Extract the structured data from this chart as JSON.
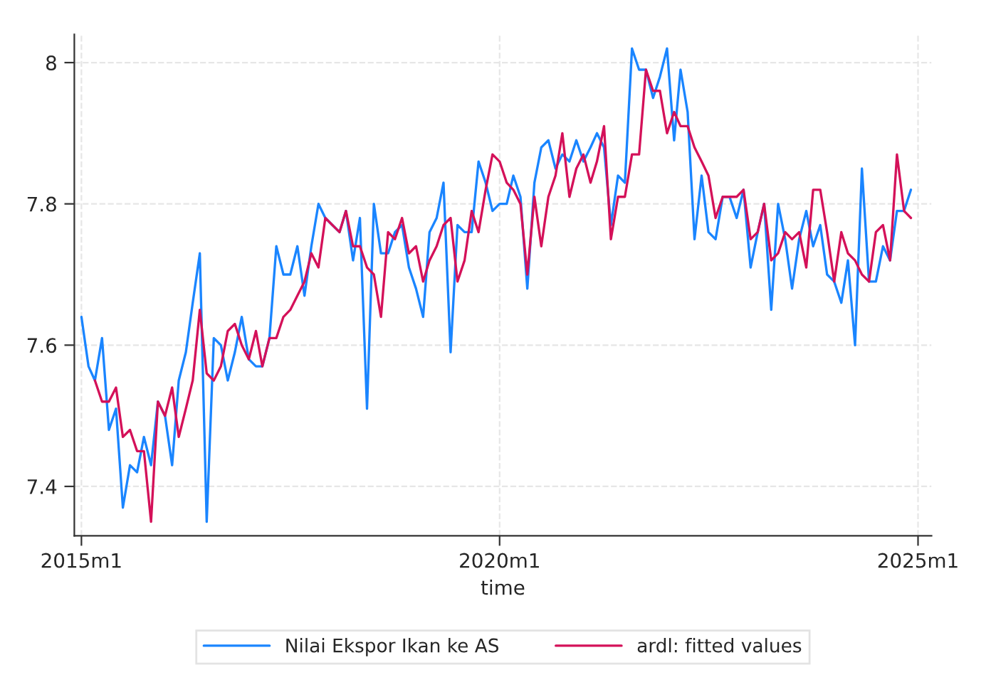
{
  "chart_data": {
    "type": "line",
    "xlabel": "time",
    "x": [
      "2015-01",
      "2015-02",
      "2015-03",
      "2015-04",
      "2015-05",
      "2015-06",
      "2015-07",
      "2015-08",
      "2015-09",
      "2015-10",
      "2015-11",
      "2015-12",
      "2016-01",
      "2016-02",
      "2016-03",
      "2016-04",
      "2016-05",
      "2016-06",
      "2016-07",
      "2016-08",
      "2016-09",
      "2016-10",
      "2016-11",
      "2016-12",
      "2017-01",
      "2017-02",
      "2017-03",
      "2017-04",
      "2017-05",
      "2017-06",
      "2017-07",
      "2017-08",
      "2017-09",
      "2017-10",
      "2017-11",
      "2017-12",
      "2018-01",
      "2018-02",
      "2018-03",
      "2018-04",
      "2018-05",
      "2018-06",
      "2018-07",
      "2018-08",
      "2018-09",
      "2018-10",
      "2018-11",
      "2018-12",
      "2019-01",
      "2019-02",
      "2019-03",
      "2019-04",
      "2019-05",
      "2019-06",
      "2019-07",
      "2019-08",
      "2019-09",
      "2019-10",
      "2019-11",
      "2019-12",
      "2020-01",
      "2020-02",
      "2020-03",
      "2020-04",
      "2020-05",
      "2020-06",
      "2020-07",
      "2020-08",
      "2020-09",
      "2020-10",
      "2020-11",
      "2020-12",
      "2021-01",
      "2021-02",
      "2021-03",
      "2021-04",
      "2021-05",
      "2021-06",
      "2021-07",
      "2021-08",
      "2021-09",
      "2021-10",
      "2021-11",
      "2021-12",
      "2022-01",
      "2022-02",
      "2022-03",
      "2022-04",
      "2022-05",
      "2022-06",
      "2022-07",
      "2022-08",
      "2022-09",
      "2022-10",
      "2022-11",
      "2022-12",
      "2023-01",
      "2023-02",
      "2023-03",
      "2023-04",
      "2023-05",
      "2023-06",
      "2023-07",
      "2023-08",
      "2023-09",
      "2023-10",
      "2023-11",
      "2023-12",
      "2024-01",
      "2024-02",
      "2024-03",
      "2024-04",
      "2024-05",
      "2024-06",
      "2024-07",
      "2024-08",
      "2024-09",
      "2024-10",
      "2024-11",
      "2024-12"
    ],
    "series": [
      {
        "name": "Nilai Ekspor Ikan ke AS",
        "color": "#1a85ff",
        "values": [
          7.64,
          7.57,
          7.55,
          7.61,
          7.48,
          7.51,
          7.37,
          7.43,
          7.42,
          7.47,
          7.43,
          7.52,
          7.5,
          7.43,
          7.55,
          7.59,
          7.66,
          7.73,
          7.35,
          7.61,
          7.6,
          7.55,
          7.59,
          7.64,
          7.58,
          7.57,
          7.57,
          7.61,
          7.74,
          7.7,
          7.7,
          7.74,
          7.67,
          7.74,
          7.8,
          7.78,
          7.77,
          7.76,
          7.79,
          7.72,
          7.78,
          7.51,
          7.8,
          7.73,
          7.73,
          7.76,
          7.77,
          7.71,
          7.68,
          7.64,
          7.76,
          7.78,
          7.83,
          7.59,
          7.77,
          7.76,
          7.76,
          7.86,
          7.83,
          7.79,
          7.8,
          7.8,
          7.84,
          7.81,
          7.68,
          7.83,
          7.88,
          7.89,
          7.85,
          7.87,
          7.86,
          7.89,
          7.86,
          7.88,
          7.9,
          7.88,
          7.77,
          7.84,
          7.83,
          8.02,
          7.99,
          7.99,
          7.95,
          7.98,
          8.02,
          7.89,
          7.99,
          7.93,
          7.75,
          7.84,
          7.76,
          7.75,
          7.81,
          7.81,
          7.78,
          7.82,
          7.71,
          7.76,
          7.8,
          7.65,
          7.8,
          7.75,
          7.68,
          7.75,
          7.79,
          7.74,
          7.77,
          7.7,
          7.69,
          7.66,
          7.72,
          7.6,
          7.85,
          7.69,
          7.69,
          7.74,
          7.72,
          7.79,
          7.79,
          7.82
        ]
      },
      {
        "name": "ardl: fitted values",
        "color": "#d41159",
        "values": [
          null,
          null,
          7.55,
          7.52,
          7.52,
          7.54,
          7.47,
          7.48,
          7.45,
          7.45,
          7.35,
          7.52,
          7.5,
          7.54,
          7.47,
          7.51,
          7.55,
          7.65,
          7.56,
          7.55,
          7.57,
          7.62,
          7.63,
          7.6,
          7.58,
          7.62,
          7.57,
          7.61,
          7.61,
          7.64,
          7.65,
          7.67,
          7.69,
          7.73,
          7.71,
          7.78,
          7.77,
          7.76,
          7.79,
          7.74,
          7.74,
          7.71,
          7.7,
          7.64,
          7.76,
          7.75,
          7.78,
          7.73,
          7.74,
          7.69,
          7.72,
          7.74,
          7.77,
          7.78,
          7.69,
          7.72,
          7.79,
          7.76,
          7.82,
          7.87,
          7.86,
          7.83,
          7.82,
          7.8,
          7.7,
          7.81,
          7.74,
          7.81,
          7.84,
          7.9,
          7.81,
          7.85,
          7.87,
          7.83,
          7.86,
          7.91,
          7.75,
          7.81,
          7.81,
          7.87,
          7.87,
          7.99,
          7.96,
          7.96,
          7.9,
          7.93,
          7.91,
          7.91,
          7.88,
          7.86,
          7.84,
          7.78,
          7.81,
          7.81,
          7.81,
          7.82,
          7.75,
          7.76,
          7.8,
          7.72,
          7.73,
          7.76,
          7.75,
          7.76,
          7.71,
          7.82,
          7.82,
          7.76,
          7.69,
          7.76,
          7.73,
          7.72,
          7.7,
          7.69,
          7.76,
          7.77,
          7.72,
          7.87,
          7.79,
          7.78
        ]
      }
    ],
    "xlim": [
      "2014-12",
      "2025-03"
    ],
    "xticks": [
      {
        "value": "2015-01",
        "label": "2015m1"
      },
      {
        "value": "2020-01",
        "label": "2020m1"
      },
      {
        "value": "2025-01",
        "label": "2025m1"
      }
    ],
    "ylim": [
      7.33,
      8.04
    ],
    "yticks": [
      7.4,
      7.6,
      7.8,
      8
    ],
    "grid": true,
    "legend": "bottom",
    "line_style": "solid",
    "marker": "none"
  }
}
